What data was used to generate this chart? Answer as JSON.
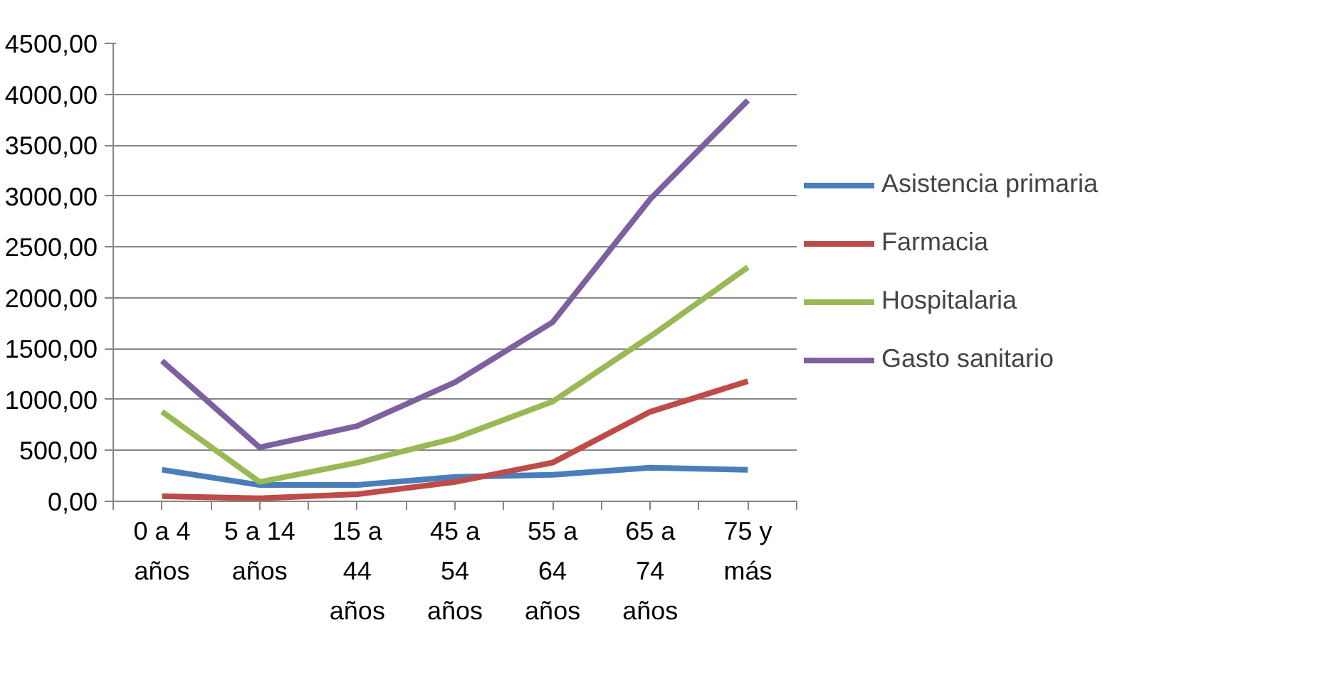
{
  "chart_data": {
    "type": "line",
    "categories": [
      "0 a 4 años",
      "5 a 14 años",
      "15 a 44 años",
      "45 a 54 años",
      "55 a 64 años",
      "65 a 74 años",
      "75 y más"
    ],
    "series": [
      {
        "name": "Asistencia primaria",
        "color": "#4a7ebb",
        "values": [
          310,
          160,
          160,
          240,
          260,
          330,
          310
        ]
      },
      {
        "name": "Farmacia",
        "color": "#be4b48",
        "values": [
          50,
          30,
          70,
          190,
          380,
          880,
          1180
        ]
      },
      {
        "name": "Hospitalaria",
        "color": "#98b954",
        "values": [
          880,
          190,
          380,
          620,
          980,
          1620,
          2300
        ]
      },
      {
        "name": "Gasto sanitario",
        "color": "#7d60a0",
        "values": [
          1380,
          530,
          740,
          1170,
          1760,
          2970,
          3940
        ]
      }
    ],
    "ylim": [
      0,
      4500
    ],
    "yticks": [
      {
        "value": 0,
        "label": "0,00"
      },
      {
        "value": 500,
        "label": "500,00"
      },
      {
        "value": 1000,
        "label": "1000,00"
      },
      {
        "value": 1500,
        "label": "1500,00"
      },
      {
        "value": 2000,
        "label": "2000,00"
      },
      {
        "value": 2500,
        "label": "2500,00"
      },
      {
        "value": 3000,
        "label": "3000,00"
      },
      {
        "value": 3500,
        "label": "3500,00"
      },
      {
        "value": 4000,
        "label": "4000,00"
      },
      {
        "value": 4500,
        "label": "4500,00"
      }
    ],
    "grid": "y",
    "legend": "right",
    "marker": "none",
    "line_style": "solid"
  }
}
